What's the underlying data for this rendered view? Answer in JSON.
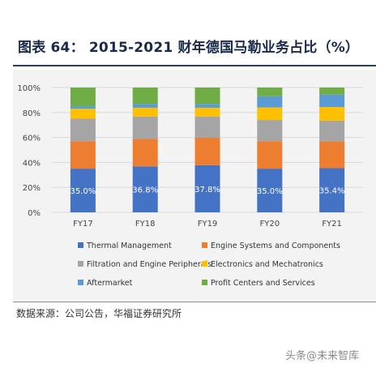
{
  "figure": {
    "title": "图表 64：  2015-2021 财年德国马勒业务占比（%）",
    "source": "数据来源：公司公告，华福证券研究所",
    "watermark": "头条@未来智库"
  },
  "chart_data": {
    "type": "bar",
    "stacked": true,
    "categories": [
      "FY17",
      "FY18",
      "FY19",
      "FY20",
      "FY21"
    ],
    "ylim": [
      0,
      100
    ],
    "yticks": [
      "0%",
      "20%",
      "40%",
      "60%",
      "80%",
      "100%"
    ],
    "grid": true,
    "legend_position": "bottom",
    "series": [
      {
        "name": "Thermal Management",
        "color": "#4472C4",
        "values": [
          35.0,
          36.8,
          37.8,
          35.0,
          35.4
        ],
        "labels": [
          "35.0%",
          "36.8%",
          "37.8%",
          "35.0%",
          "35.4%"
        ]
      },
      {
        "name": "Engine Systems and Components",
        "color": "#ED7D31",
        "values": [
          22,
          22,
          22,
          22,
          21.5
        ]
      },
      {
        "name": "Filtration and Engine Peripherals",
        "color": "#A5A5A5",
        "values": [
          18,
          18,
          17,
          17,
          16.5
        ]
      },
      {
        "name": "Electronics and Mechatronics",
        "color": "#FFC000",
        "values": [
          8,
          7,
          7,
          10,
          11
        ]
      },
      {
        "name": "Aftermarket",
        "color": "#5B9BD5",
        "values": [
          2,
          3,
          3,
          9,
          10
        ]
      },
      {
        "name": "Profit Centers and Services",
        "color": "#70AD47",
        "values": [
          15,
          13.2,
          13.2,
          7,
          5.6
        ]
      }
    ]
  }
}
